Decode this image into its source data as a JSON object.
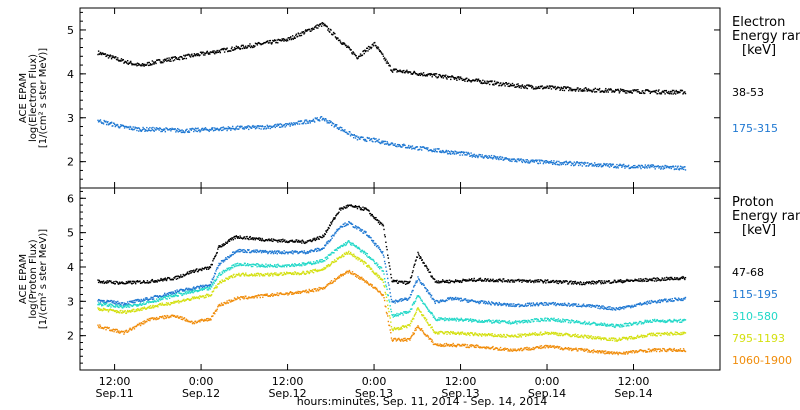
{
  "chart_data": [
    {
      "type": "scatter",
      "panel": "electron",
      "ylabel_lines": [
        "ACE EPAM",
        "log(Electron Flux)",
        "[1/(cm² s ster MeV)]"
      ],
      "ylim": [
        1.4,
        5.5
      ],
      "yticks": [
        2,
        3,
        4,
        5
      ],
      "legend": {
        "title_lines": [
          "Electron",
          "Energy ran",
          "[keV]"
        ],
        "entries": [
          {
            "label": "38-53",
            "color": "#000000"
          },
          {
            "label": "175-315",
            "color": "#1f78d2"
          }
        ]
      },
      "series": [
        {
          "name": "38-53",
          "color": "#000000",
          "x": [
            -0.1,
            0.05,
            0.15,
            0.25,
            0.4,
            0.55,
            0.7,
            0.85,
            1.0,
            1.2,
            1.4,
            1.5,
            1.6,
            1.7,
            1.8,
            1.9,
            2.0,
            2.1,
            2.2,
            2.3,
            2.4,
            2.5,
            2.6,
            2.7,
            2.8,
            2.9,
            3.0,
            3.1,
            3.2,
            3.3
          ],
          "y": [
            4.5,
            4.3,
            4.2,
            4.3,
            4.4,
            4.5,
            4.6,
            4.7,
            4.8,
            5.15,
            4.4,
            4.7,
            4.1,
            4.05,
            4.0,
            3.95,
            3.9,
            3.85,
            3.8,
            3.75,
            3.72,
            3.7,
            3.68,
            3.66,
            3.64,
            3.63,
            3.62,
            3.61,
            3.6,
            3.6
          ]
        },
        {
          "name": "175-315",
          "color": "#1f78d2",
          "x": [
            -0.1,
            0.05,
            0.15,
            0.25,
            0.4,
            0.55,
            0.7,
            0.85,
            1.0,
            1.2,
            1.4,
            1.5,
            1.6,
            1.7,
            1.8,
            1.9,
            2.0,
            2.1,
            2.2,
            2.3,
            2.4,
            2.5,
            2.6,
            2.7,
            2.8,
            2.9,
            3.0,
            3.1,
            3.2,
            3.3
          ],
          "y": [
            2.95,
            2.8,
            2.75,
            2.75,
            2.72,
            2.75,
            2.78,
            2.8,
            2.85,
            3.0,
            2.55,
            2.5,
            2.42,
            2.35,
            2.3,
            2.25,
            2.2,
            2.15,
            2.1,
            2.05,
            2.02,
            2.0,
            1.98,
            1.96,
            1.94,
            1.92,
            1.9,
            1.9,
            1.88,
            1.87
          ]
        }
      ]
    },
    {
      "type": "scatter",
      "panel": "proton",
      "ylabel_lines": [
        "ACE EPAM",
        "log(Proton Flux)",
        "[1/(cm² s ster MeV)]"
      ],
      "ylim": [
        1.0,
        6.3
      ],
      "yticks": [
        2,
        3,
        4,
        5,
        6
      ],
      "legend": {
        "title_lines": [
          "Proton",
          "Energy ran",
          "[keV]"
        ],
        "entries": [
          {
            "label": "47-68",
            "color": "#000000"
          },
          {
            "label": "115-195",
            "color": "#1f78d2"
          },
          {
            "label": "310-580",
            "color": "#22d8c8"
          },
          {
            "label": "795-1193",
            "color": "#d4e011"
          },
          {
            "label": "1060-1900",
            "color": "#f08c0a"
          }
        ]
      },
      "series": [
        {
          "name": "47-68",
          "color": "#000000",
          "x": [
            -0.1,
            0.05,
            0.2,
            0.35,
            0.45,
            0.55,
            0.6,
            0.7,
            0.9,
            1.1,
            1.2,
            1.3,
            1.35,
            1.45,
            1.55,
            1.6,
            1.7,
            1.75,
            1.85,
            1.95,
            2.1,
            2.3,
            2.5,
            2.7,
            2.9,
            3.1,
            3.3
          ],
          "y": [
            3.6,
            3.55,
            3.6,
            3.7,
            3.9,
            4.0,
            4.6,
            4.9,
            4.8,
            4.75,
            4.9,
            5.7,
            5.8,
            5.7,
            5.2,
            3.6,
            3.55,
            4.4,
            3.6,
            3.6,
            3.65,
            3.62,
            3.6,
            3.55,
            3.6,
            3.65,
            3.7
          ]
        },
        {
          "name": "115-195",
          "color": "#1f78d2",
          "x": [
            -0.1,
            0.05,
            0.2,
            0.35,
            0.45,
            0.55,
            0.6,
            0.7,
            0.9,
            1.1,
            1.2,
            1.3,
            1.35,
            1.45,
            1.55,
            1.6,
            1.7,
            1.75,
            1.85,
            1.95,
            2.1,
            2.3,
            2.5,
            2.7,
            2.9,
            3.1,
            3.3
          ],
          "y": [
            3.05,
            2.95,
            3.1,
            3.3,
            3.4,
            3.5,
            4.1,
            4.5,
            4.45,
            4.45,
            4.55,
            5.2,
            5.3,
            5.0,
            4.4,
            3.0,
            3.1,
            3.7,
            3.0,
            3.1,
            3.0,
            2.9,
            2.95,
            2.9,
            2.8,
            3.0,
            3.1
          ]
        },
        {
          "name": "310-580",
          "color": "#22d8c8",
          "x": [
            -0.1,
            0.05,
            0.2,
            0.35,
            0.45,
            0.55,
            0.6,
            0.7,
            0.9,
            1.1,
            1.2,
            1.3,
            1.35,
            1.45,
            1.55,
            1.6,
            1.7,
            1.75,
            1.85,
            1.95,
            2.1,
            2.3,
            2.5,
            2.7,
            2.9,
            3.1,
            3.3
          ],
          "y": [
            2.95,
            2.85,
            3.0,
            3.2,
            3.3,
            3.4,
            3.8,
            4.1,
            4.05,
            4.1,
            4.2,
            4.6,
            4.75,
            4.4,
            3.9,
            2.6,
            2.7,
            3.2,
            2.5,
            2.5,
            2.45,
            2.4,
            2.5,
            2.4,
            2.3,
            2.45,
            2.45
          ]
        },
        {
          "name": "795-1193",
          "color": "#d4e011",
          "x": [
            -0.1,
            0.05,
            0.2,
            0.35,
            0.45,
            0.55,
            0.6,
            0.7,
            0.9,
            1.1,
            1.2,
            1.3,
            1.35,
            1.45,
            1.55,
            1.6,
            1.7,
            1.75,
            1.85,
            1.95,
            2.1,
            2.3,
            2.5,
            2.7,
            2.9,
            3.1,
            3.3
          ],
          "y": [
            2.8,
            2.7,
            2.85,
            3.0,
            3.1,
            3.2,
            3.55,
            3.8,
            3.8,
            3.85,
            3.95,
            4.3,
            4.45,
            4.1,
            3.6,
            2.2,
            2.3,
            2.8,
            2.1,
            2.1,
            2.05,
            2.0,
            2.1,
            2.0,
            1.9,
            2.05,
            2.1
          ]
        },
        {
          "name": "1060-1900",
          "color": "#f08c0a",
          "x": [
            -0.1,
            0.05,
            0.2,
            0.35,
            0.45,
            0.55,
            0.6,
            0.7,
            0.9,
            1.1,
            1.2,
            1.3,
            1.35,
            1.45,
            1.55,
            1.6,
            1.7,
            1.75,
            1.85,
            1.95,
            2.1,
            2.3,
            2.5,
            2.7,
            2.9,
            3.1,
            3.3
          ],
          "y": [
            2.3,
            2.1,
            2.5,
            2.6,
            2.4,
            2.5,
            2.9,
            3.1,
            3.2,
            3.3,
            3.4,
            3.75,
            3.9,
            3.6,
            3.2,
            1.9,
            1.9,
            2.3,
            1.75,
            1.75,
            1.7,
            1.6,
            1.7,
            1.6,
            1.5,
            1.6,
            1.6
          ]
        }
      ]
    }
  ],
  "x_axis": {
    "range": [
      -0.2,
      3.5
    ],
    "ticks": [
      {
        "value": 0,
        "time": "12:00",
        "date": "Sep.11"
      },
      {
        "value": 0.5,
        "time": "0:00",
        "date": "Sep.12"
      },
      {
        "value": 1.0,
        "time": "12:00",
        "date": "Sep.12"
      },
      {
        "value": 1.5,
        "time": "0:00",
        "date": "Sep.13"
      },
      {
        "value": 2.0,
        "time": "12:00",
        "date": "Sep.13"
      },
      {
        "value": 2.5,
        "time": "0:00",
        "date": "Sep.14"
      },
      {
        "value": 3.0,
        "time": "12:00",
        "date": "Sep.14"
      }
    ],
    "xlabel": "hours:minutes, Sep. 11, 2014 - Sep. 14, 2014"
  }
}
